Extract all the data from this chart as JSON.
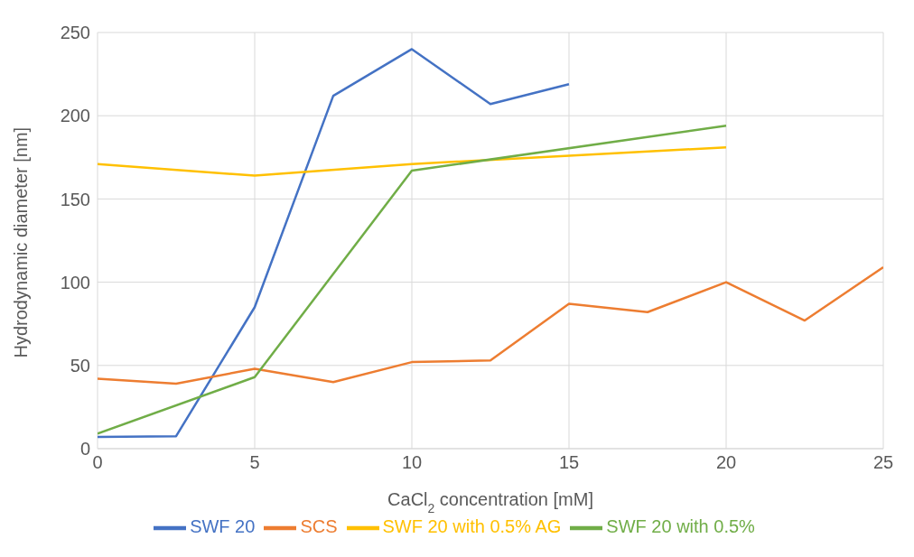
{
  "chart_data": {
    "type": "line",
    "xlabel": "CaCl$_{2}$ concentration [mM]",
    "ylabel": "Hydrodynamic diameter [nm]",
    "xlim": [
      0,
      25
    ],
    "xticks": [
      0,
      5,
      10,
      15,
      20,
      25
    ],
    "ylim": [
      0,
      250
    ],
    "yticks": [
      0,
      50,
      100,
      150,
      200,
      250
    ],
    "grid": true,
    "legend": "bottom",
    "marker": "none",
    "line_style": "solid",
    "series": [
      {
        "name": "SWF 20",
        "color": "#4472c4",
        "x": [
          0,
          2.5,
          5,
          7.5,
          10,
          12.5,
          15
        ],
        "values": [
          7,
          7.5,
          85,
          212,
          240,
          207,
          219
        ]
      },
      {
        "name": "SCS",
        "color": "#ed7d31",
        "x": [
          0,
          2.5,
          5,
          7.5,
          10,
          12.5,
          15,
          17.5,
          20,
          22.5,
          25
        ],
        "values": [
          42,
          39,
          48,
          40,
          52,
          53,
          87,
          82,
          100,
          77,
          109
        ]
      },
      {
        "name": "SWF 20 with 0.5% AG",
        "color": "#ffc000",
        "x": [
          0,
          5,
          10,
          15,
          20
        ],
        "values": [
          171,
          164,
          171,
          176,
          181
        ]
      },
      {
        "name": "SWF 20 with 0.5%",
        "color": "#70ad47",
        "x": [
          0,
          5,
          10,
          20
        ],
        "values": [
          9,
          43,
          167,
          194
        ]
      }
    ]
  }
}
